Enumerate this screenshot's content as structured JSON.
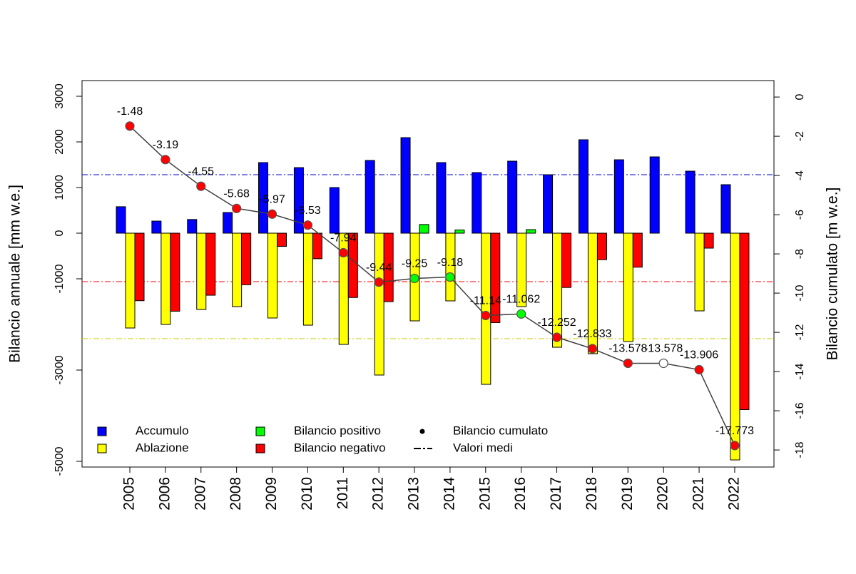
{
  "chart_data": {
    "type": "bar-line",
    "categories": [
      "2005",
      "2006",
      "2007",
      "2008",
      "2009",
      "2010",
      "2011",
      "2012",
      "2013",
      "2014",
      "2015",
      "2016",
      "2017",
      "2018",
      "2019",
      "2020",
      "2021",
      "2022"
    ],
    "y_label": "Bilancio annuale [mm w.e.]",
    "y2_label": "Bilancio cumulato [m w.e.]",
    "ylim": [
      -5125,
      3344
    ],
    "yticks": [
      3000,
      2000,
      1000,
      0,
      -1000,
      -3000,
      -5000
    ],
    "y2lim": [
      -18.87,
      0.84
    ],
    "y2ticks": [
      0,
      -2,
      -4,
      -6,
      -8,
      -10,
      -12,
      -14,
      -16,
      -18
    ],
    "series": [
      {
        "name": "Accumulo",
        "color": "#0000ff",
        "slot": 0,
        "values": [
          580,
          265,
          300,
          453,
          1547,
          1437,
          1000,
          1594,
          2094,
          1547,
          1328,
          1578,
          1281,
          2047,
          1609,
          1672,
          1359,
          1063
        ]
      },
      {
        "name": "Ablazione",
        "color": "#ffff00",
        "slot": 1,
        "values": [
          -2078,
          -2000,
          -1672,
          -1609,
          -1859,
          -2016,
          -2438,
          -3109,
          -1922,
          -1484,
          -3313,
          -1609,
          -2500,
          -2641,
          -2375,
          null,
          -1703,
          -4969
        ]
      },
      {
        "name": "Bilancio positivo",
        "color": "#00ff00",
        "slot": 2,
        "values": [
          null,
          null,
          null,
          null,
          null,
          null,
          null,
          null,
          190,
          70,
          null,
          78,
          null,
          null,
          null,
          null,
          null,
          null
        ]
      },
      {
        "name": "Bilancio negativo",
        "color": "#ff0000",
        "slot": 2,
        "values": [
          -1480,
          -1710,
          -1360,
          -1130,
          -290,
          -560,
          -1410,
          -1500,
          null,
          null,
          -1960,
          null,
          -1190,
          -581,
          -745,
          null,
          -328,
          -3867
        ]
      },
      {
        "name": "Bilancio cumulato",
        "color": "#404040",
        "axis": "y2",
        "values": [
          -1.48,
          -3.19,
          -4.55,
          -5.68,
          -5.97,
          -6.53,
          -7.94,
          -9.44,
          -9.25,
          -9.18,
          -11.14,
          -11.062,
          -12.252,
          -12.833,
          -13.578,
          -13.578,
          -13.906,
          -17.773
        ],
        "marker_colors": [
          "#ff0000",
          "#ff0000",
          "#ff0000",
          "#ff0000",
          "#ff0000",
          "#ff0000",
          "#ff0000",
          "#ff0000",
          "#00ff00",
          "#00ff00",
          "#ff0000",
          "#00ff00",
          "#ff0000",
          "#ff0000",
          "#ff0000",
          "#ffffff",
          "#ff0000",
          "#ff0000"
        ]
      }
    ],
    "mean_lines": {
      "name": "Valori medi",
      "values": [
        1281,
        -1063,
        -2313
      ],
      "colors": [
        "#0000cc",
        "#ff0000",
        "#cccc00"
      ]
    }
  }
}
